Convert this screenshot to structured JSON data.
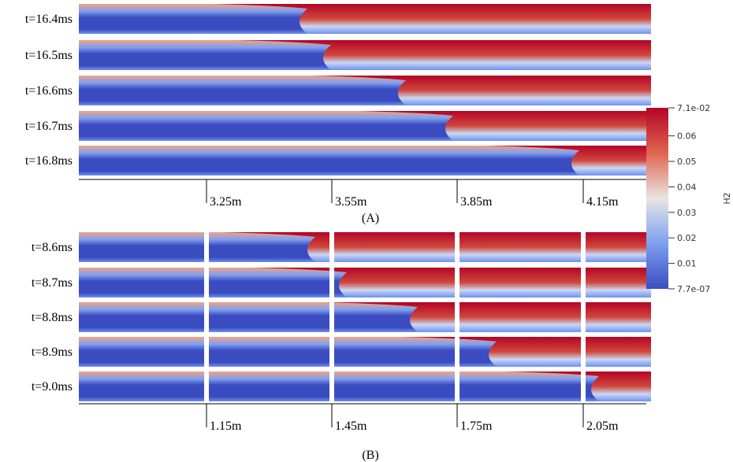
{
  "panel_a": {
    "time_labels": [
      "t=16.4ms",
      "t=16.5ms",
      "t=16.6ms",
      "t=16.7ms",
      "t=16.8ms"
    ],
    "position_labels": [
      "3.25m",
      "3.55m",
      "3.85m",
      "4.15m"
    ],
    "caption": "(A)"
  },
  "panel_b": {
    "time_labels": [
      "t=8.6ms",
      "t=8.7ms",
      "t=8.8ms",
      "t=8.9ms",
      "t=9.0ms"
    ],
    "position_labels": [
      "1.15m",
      "1.45m",
      "1.75m",
      "2.05m"
    ],
    "caption": "(B)"
  },
  "colorbar": {
    "title": "H2",
    "lim": [
      7.7e-07,
      0.071
    ],
    "ticks": [
      {
        "value": 0.071,
        "label": "7.1e-02"
      },
      0.06,
      0.05,
      0.04,
      0.03,
      0.02,
      0.01,
      {
        "value": 7.7e-07,
        "label": "7.7e-07"
      }
    ]
  }
}
